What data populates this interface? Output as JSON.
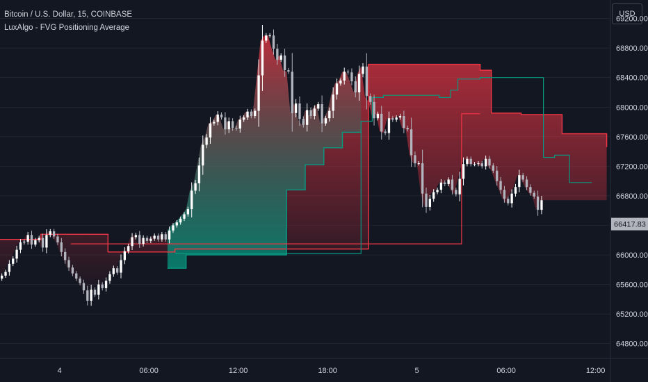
{
  "legend": {
    "symbol_title": "Bitcoin / U.S. Dollar, 15, COINBASE",
    "indicator_title": "LuxAlgo - FVG Positioning Average"
  },
  "currency_label": "USD",
  "last_price_label": "66417.83",
  "colors": {
    "background": "#131722",
    "candle_up": "#ffffff",
    "candle_down": "#b2b5be",
    "bearish_fvg": "#f23645",
    "bullish_fvg": "#089981",
    "grid": "#2a2e39",
    "axis_text": "#d1d4dc",
    "price_tag_bg": "#b2b5be"
  },
  "chart_data": {
    "type": "candlestick",
    "y_axis": {
      "range": [
        64600,
        69450
      ],
      "tick_labels": [
        "69200.00",
        "68800.00",
        "68400.00",
        "68000.00",
        "67600.00",
        "67200.00",
        "66800.00",
        "66400.00",
        "66000.00",
        "65600.00",
        "65200.00",
        "64800.00"
      ],
      "tick_values": [
        69200,
        68800,
        68400,
        68000,
        67600,
        67200,
        66800,
        66400,
        66000,
        65600,
        65200,
        64800
      ]
    },
    "x_axis": {
      "tick_labels": [
        "4",
        "06:00",
        "12:00",
        "18:00",
        "5",
        "06:00",
        "12:00"
      ],
      "tick_times": [
        "2024-04-04T00:00",
        "2024-04-04T06:00",
        "2024-04-04T12:00",
        "2024-04-04T18:00",
        "2024-04-05T00:00",
        "2024-04-05T06:00",
        "2024-04-05T12:00"
      ],
      "range": [
        "2024-04-03T20:00",
        "2024-04-05T13:00"
      ]
    },
    "last_price": 66417.83,
    "close": [
      65720,
      65770,
      65880,
      65950,
      66070,
      66170,
      66180,
      66270,
      66140,
      66200,
      66230,
      66100,
      66270,
      66320,
      66250,
      66170,
      66040,
      65930,
      65830,
      65750,
      65680,
      65620,
      65520,
      65380,
      65530,
      65460,
      65600,
      65550,
      65650,
      65740,
      65820,
      65760,
      65930,
      66050,
      66120,
      66240,
      66270,
      66150,
      66230,
      66190,
      66220,
      66260,
      66210,
      66280,
      66210,
      66330,
      66400,
      66440,
      66490,
      66550,
      66620,
      66870,
      66970,
      67210,
      67490,
      67590,
      67780,
      67800,
      67900,
      67860,
      67700,
      67810,
      67720,
      67710,
      67830,
      67860,
      67940,
      67880,
      67950,
      68430,
      68900,
      68970,
      68970,
      68790,
      68640,
      68700,
      68500,
      68480,
      67920,
      68050,
      67840,
      67760,
      67960,
      67880,
      67980,
      68040,
      67780,
      67850,
      67950,
      68170,
      68320,
      68360,
      68480,
      68470,
      68350,
      68200,
      68450,
      68550,
      68150,
      68070,
      67850,
      67910,
      67670,
      67650,
      67850,
      67830,
      67860,
      67880,
      67720,
      67700,
      67350,
      67240,
      67240,
      66830,
      66650,
      66760,
      66850,
      66880,
      66980,
      66960,
      67020,
      66880,
      66820,
      67030,
      67230,
      67300,
      67230,
      67230,
      67240,
      67200,
      67300,
      67210,
      67140,
      67000,
      66880,
      66760,
      66700,
      66830,
      66920,
      67080,
      67020,
      66920,
      66840,
      66790,
      66610,
      66740
    ],
    "bearish_fvg_upper": {
      "x": [
        "2024-04-03T20:00",
        "2024-04-03T22:45",
        "2024-04-04T03:15",
        "2024-04-04T07:45",
        "2024-04-04T20:45",
        "2024-04-05T04:15",
        "2024-04-05T05:00",
        "2024-04-05T07:00",
        "2024-04-05T09:45",
        "2024-04-05T12:45"
      ],
      "y": [
        66210,
        66280,
        66040,
        66080,
        68580,
        68500,
        67920,
        67900,
        67640,
        67460
      ]
    },
    "bearish_fvg_average": {
      "x": [
        "2024-04-04T00:45",
        "2024-04-04T02:15",
        "2024-04-05T03:00",
        "2024-04-05T04:15"
      ],
      "y": [
        66150,
        66150,
        67910,
        67910
      ]
    },
    "bullish_fvg_lower": {
      "x": [
        "2024-04-04T07:15",
        "2024-04-04T08:30",
        "2024-04-04T15:15",
        "2024-04-04T16:30",
        "2024-04-04T17:45",
        "2024-04-04T19:00",
        "2024-04-04T20:15"
      ],
      "y": [
        65820,
        66000,
        66880,
        67220,
        67450,
        67660,
        67690
      ]
    },
    "bullish_fvg_average": {
      "x": [
        "2024-04-04T07:45",
        "2024-04-04T08:45",
        "2024-04-04T20:15",
        "2024-04-04T21:00",
        "2024-04-04T21:45",
        "2024-04-04T22:30",
        "2024-04-05T01:30",
        "2024-04-05T02:15",
        "2024-04-05T02:45",
        "2024-04-05T04:15",
        "2024-04-05T08:30",
        "2024-04-05T09:15",
        "2024-04-05T10:15",
        "2024-04-05T11:45"
      ],
      "y": [
        66020,
        66020,
        67810,
        68130,
        68160,
        68160,
        68130,
        68230,
        68380,
        68400,
        67320,
        67350,
        66980,
        66980
      ]
    }
  }
}
